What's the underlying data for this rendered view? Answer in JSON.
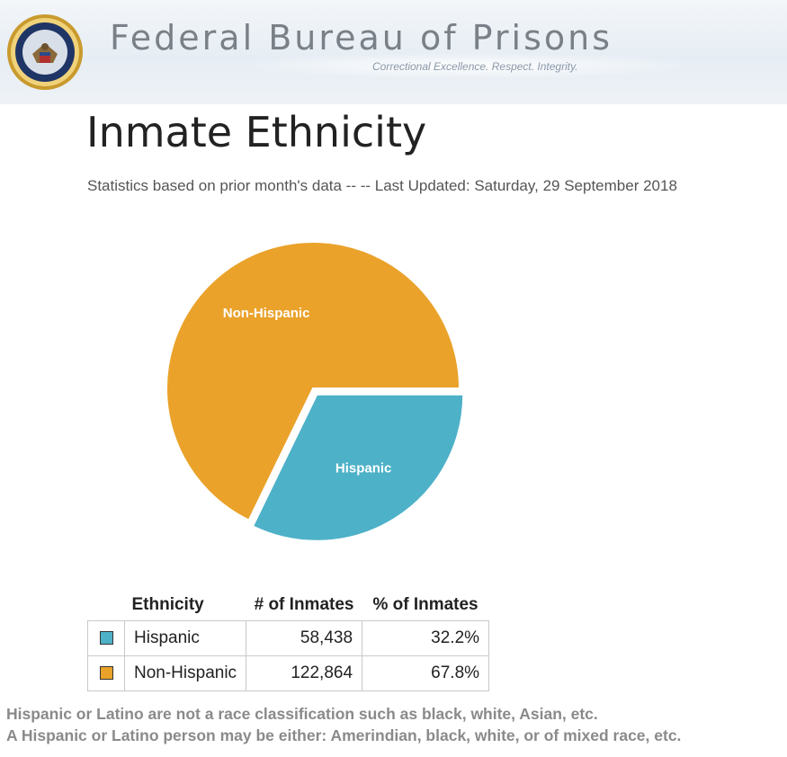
{
  "header": {
    "agency": "Federal Bureau of Prisons",
    "tagline": "Correctional Excellence.  Respect.  Integrity."
  },
  "page": {
    "title": "Inmate Ethnicity",
    "stats_line": "Statistics based on prior month's data -- -- Last Updated: Saturday, 29 September 2018"
  },
  "chart_data": {
    "type": "pie",
    "categories": [
      "Hispanic",
      "Non-Hispanic"
    ],
    "values": [
      32.2,
      67.8
    ],
    "colors": [
      "#4db1c8",
      "#eaa22a"
    ],
    "start": "3 o'clock",
    "direction": "clockwise",
    "exploded": "Hispanic"
  },
  "table": {
    "headers": [
      "Ethnicity",
      "# of Inmates",
      "% of Inmates"
    ],
    "rows": [
      {
        "label": "Hispanic",
        "count": "58,438",
        "percent": "32.2%",
        "color": "#4db1c8"
      },
      {
        "label": "Non-Hispanic",
        "count": "122,864",
        "percent": "67.8%",
        "color": "#eaa22a"
      }
    ]
  },
  "notes": [
    "Hispanic or Latino are not a race classification such as black, white, Asian, etc.",
    "A Hispanic or Latino person may be either: Amerindian, black, white, or of mixed race, etc."
  ]
}
